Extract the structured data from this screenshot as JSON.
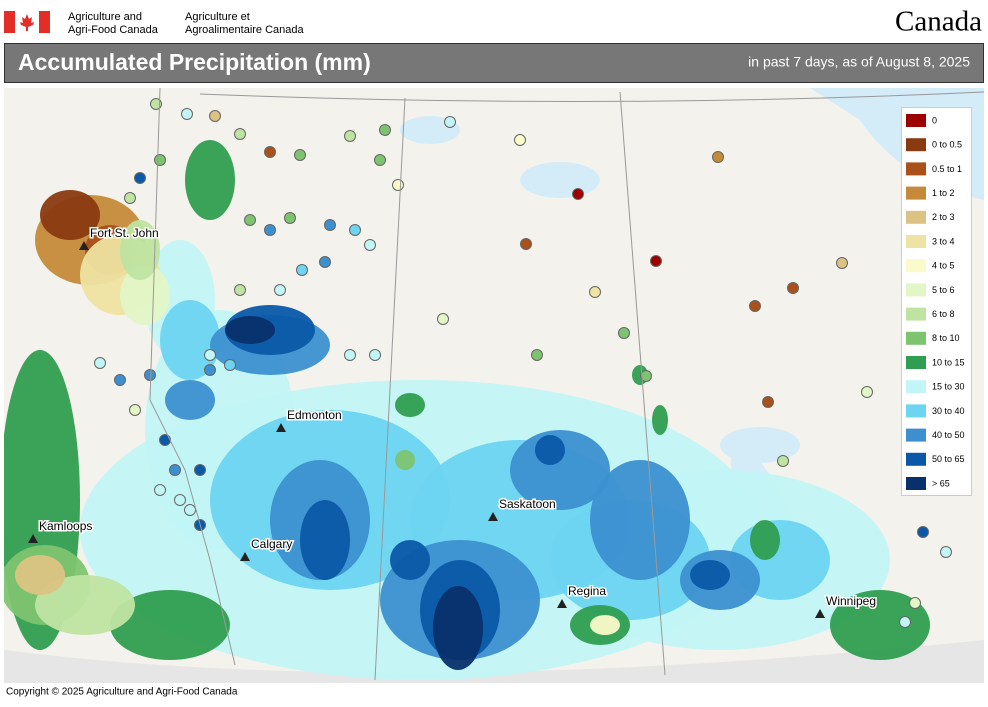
{
  "header": {
    "agency_en": [
      "Agriculture and",
      "Agri-Food Canada"
    ],
    "agency_fr": [
      "Agriculture et",
      "Agroalimentaire Canada"
    ],
    "wordmark": "Canada"
  },
  "title": "Accumulated Precipitation (mm)",
  "subtitle": "in past 7 days, as of August 8, 2025",
  "legend": [
    {
      "label": "0",
      "color": "#9c0000"
    },
    {
      "label": "0 to 0.5",
      "color": "#8a3a10"
    },
    {
      "label": "0.5 to 1",
      "color": "#a9501b"
    },
    {
      "label": "1 to 2",
      "color": "#c48a3a"
    },
    {
      "label": "2 to 3",
      "color": "#dcc383"
    },
    {
      "label": "3 to 4",
      "color": "#eee3a2"
    },
    {
      "label": "4 to 5",
      "color": "#fafaca"
    },
    {
      "label": "5 to 6",
      "color": "#e3f6c6"
    },
    {
      "label": "6 to 8",
      "color": "#bfe4a2"
    },
    {
      "label": "8 to 10",
      "color": "#7dc470"
    },
    {
      "label": "10 to 15",
      "color": "#2f9e50"
    },
    {
      "label": "15 to 30",
      "color": "#c2f6f6"
    },
    {
      "label": "30 to 40",
      "color": "#6dd4f1"
    },
    {
      "label": "40 to 50",
      "color": "#3c90d0"
    },
    {
      "label": "50 to 65",
      "color": "#0a58a8"
    },
    {
      "label": "> 65",
      "color": "#08306b"
    }
  ],
  "cities": [
    "Fort St. John",
    "Edmonton",
    "Kamloops",
    "Calgary",
    "Saskatoon",
    "Regina",
    "Winnipeg"
  ],
  "copyright": "Copyright © 2025 Agriculture and Agri-Food Canada"
}
